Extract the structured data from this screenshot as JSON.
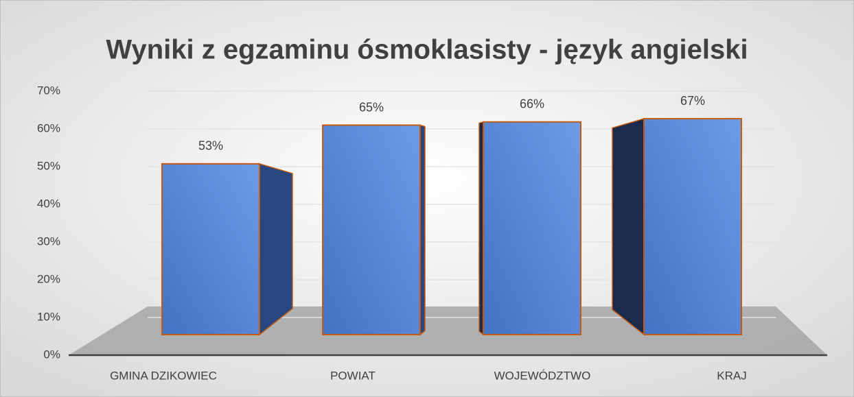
{
  "chart_data": {
    "type": "bar3d",
    "title": "Wyniki z egzaminu ósmoklasisty -  język angielski",
    "categories": [
      "GMINA DZIKOWIEC",
      "POWIAT",
      "WOJEWÓDZTWO",
      "KRAJ"
    ],
    "values": [
      53,
      65,
      66,
      67
    ],
    "value_labels": [
      "53%",
      "65%",
      "66%",
      "67%"
    ],
    "color": "#4472c4",
    "ylim": [
      0,
      70
    ],
    "yticks": [
      {
        "value": 0,
        "label": "0%"
      },
      {
        "value": 10,
        "label": "10%"
      },
      {
        "value": 20,
        "label": "20%"
      },
      {
        "value": 30,
        "label": "30%"
      },
      {
        "value": 40,
        "label": "40%"
      },
      {
        "value": 50,
        "label": "50%"
      },
      {
        "value": 60,
        "label": "60%"
      },
      {
        "value": 70,
        "label": "70%"
      }
    ],
    "grid": true
  }
}
